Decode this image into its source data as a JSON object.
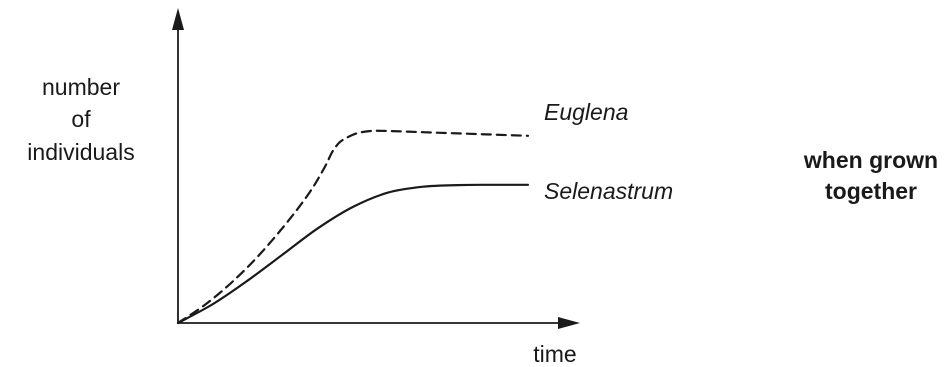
{
  "chart_data": {
    "type": "line",
    "title": "",
    "xlabel": "time",
    "ylabel_lines": [
      "number",
      "of",
      "individuals"
    ],
    "annotation_lines": [
      "when grown",
      "together"
    ],
    "x_ticks": false,
    "y_ticks": false,
    "grid": false,
    "legend": "inline labels at line ends",
    "xlim": [
      0,
      100
    ],
    "ylim": [
      0,
      100
    ],
    "series": [
      {
        "name": "Euglena",
        "style": "dashed",
        "color": "#1a1a1a",
        "x": [
          0,
          8,
          16,
          24,
          32,
          38,
          42,
          44,
          46,
          48,
          51,
          55,
          60,
          70,
          80,
          90,
          100
        ],
        "y": [
          0,
          8,
          18,
          30,
          44,
          56,
          66,
          72,
          76,
          78,
          80,
          81,
          81,
          80.5,
          80,
          79.5,
          79
        ]
      },
      {
        "name": "Selenastrum",
        "style": "solid",
        "color": "#1a1a1a",
        "x": [
          0,
          10,
          20,
          30,
          40,
          50,
          60,
          70,
          80,
          90,
          100
        ],
        "y": [
          0,
          8,
          18,
          29,
          40,
          49,
          55,
          57.5,
          58.2,
          58.3,
          58.3
        ]
      }
    ]
  }
}
